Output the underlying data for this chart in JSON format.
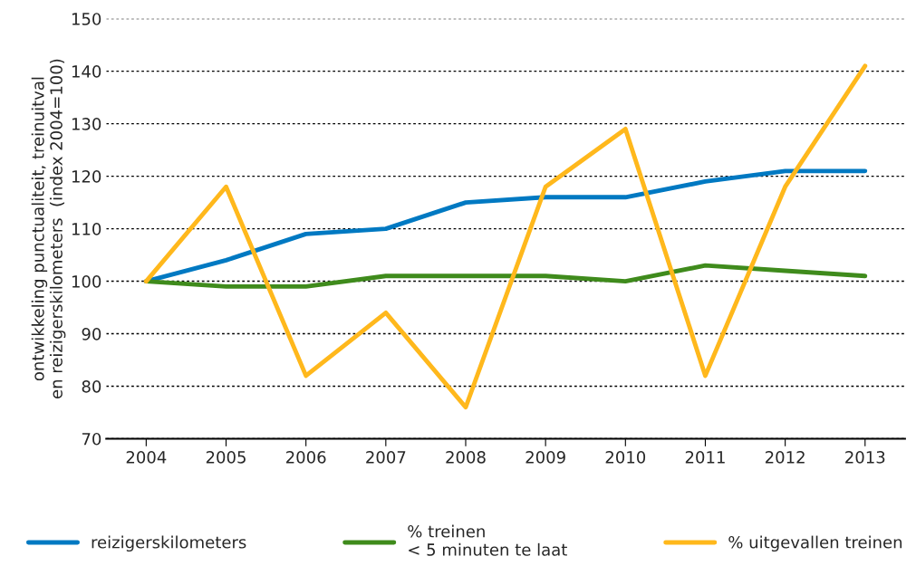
{
  "chart_data": {
    "type": "line",
    "ylabel": "ontwikkeling punctualiteit, treinuitval\nen reizigerskilometers  (index 2004=100)",
    "categories": [
      "2004",
      "2005",
      "2006",
      "2007",
      "2008",
      "2009",
      "2010",
      "2011",
      "2012",
      "2013"
    ],
    "series": [
      {
        "name": "reizigerskilometers",
        "color": "#0079c2",
        "values": [
          100,
          104,
          109,
          110,
          115,
          116,
          116,
          119,
          121,
          121
        ]
      },
      {
        "name": "% treinen\n< 5 minuten te laat",
        "color": "#3f8b1c",
        "values": [
          100,
          99,
          99,
          101,
          101,
          101,
          100,
          103,
          102,
          101
        ]
      },
      {
        "name": "% uitgevallen treinen",
        "color": "#ffb81c",
        "values": [
          100,
          118,
          82,
          94,
          76,
          118,
          129,
          82,
          118,
          141
        ]
      }
    ],
    "ylim": [
      70,
      150
    ],
    "yticks": [
      70,
      80,
      90,
      100,
      110,
      120,
      130,
      140,
      150
    ],
    "grid": "y",
    "legend": "bottom",
    "marker": "none",
    "line_style": "solid"
  }
}
